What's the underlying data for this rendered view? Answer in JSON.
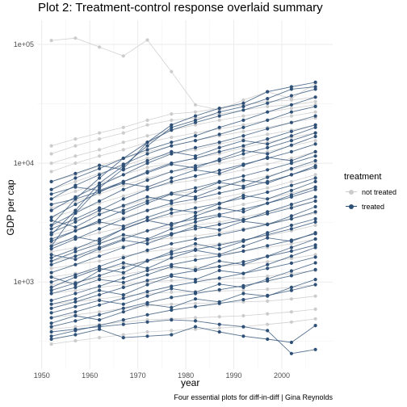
{
  "chart_data": {
    "type": "line",
    "title": "Plot 2: Treatment-control response overlaid summary",
    "xlabel": "year",
    "ylabel": "GDP per cap",
    "caption": "Four essential plots for diff-in-diff | Gina Reynolds",
    "x_ticks": [
      1950,
      1960,
      1970,
      1980,
      1990,
      2000
    ],
    "y_ticks": [
      {
        "value": 1000,
        "label": "1e+03"
      },
      {
        "value": 10000,
        "label": "1e+04"
      },
      {
        "value": 100000,
        "label": "1e+05"
      }
    ],
    "xlim": [
      1949.2,
      2010.6
    ],
    "ylim": [
      185,
      160000
    ],
    "log_y": true,
    "grid": true,
    "years": [
      1952,
      1957,
      1962,
      1967,
      1972,
      1977,
      1982,
      1987,
      1992,
      1997,
      2002,
      2007
    ],
    "legend": {
      "title": "treatment",
      "position": "right",
      "entries": [
        {
          "label": "not treated",
          "color": "#cccccc"
        },
        {
          "label": "treated",
          "color": "#2e5077"
        }
      ]
    },
    "series": [
      {
        "group": "not treated",
        "values": [
          108000,
          113000,
          95000,
          80000,
          109000,
          59000,
          31000,
          28000,
          34000,
          40000,
          35000,
          47000
        ]
      },
      {
        "group": "not treated",
        "values": [
          14000,
          16000,
          18000,
          20000,
          23000,
          26000,
          27000,
          29000,
          31000,
          33000,
          34000,
          36000
        ]
      },
      {
        "group": "not treated",
        "values": [
          12000,
          14000,
          16000,
          18000,
          21000,
          23000,
          24000,
          26000,
          28000,
          30000,
          31000,
          33000
        ]
      },
      {
        "group": "not treated",
        "values": [
          10000,
          11500,
          13000,
          15000,
          17000,
          19000,
          21000,
          23000,
          25000,
          27000,
          29000,
          31000
        ]
      },
      {
        "group": "not treated",
        "values": [
          8500,
          10000,
          11500,
          13000,
          15000,
          16500,
          18000,
          19500,
          21000,
          23000,
          25000,
          27000
        ]
      },
      {
        "group": "not treated",
        "values": [
          7000,
          8000,
          9500,
          11000,
          12500,
          14000,
          15500,
          17000,
          18500,
          20000,
          22000,
          24000
        ]
      },
      {
        "group": "not treated",
        "values": [
          6000,
          7000,
          8200,
          9500,
          11000,
          12000,
          13000,
          14500,
          16000,
          17500,
          19000,
          21000
        ]
      },
      {
        "group": "not treated",
        "values": [
          5000,
          5800,
          6800,
          8000,
          9200,
          10000,
          11000,
          12000,
          13500,
          15000,
          16500,
          18000
        ]
      },
      {
        "group": "not treated",
        "values": [
          4200,
          4800,
          5500,
          6500,
          7500,
          8500,
          9000,
          10000,
          11000,
          12500,
          14000,
          15500
        ]
      },
      {
        "group": "not treated",
        "values": [
          3500,
          4000,
          4600,
          5300,
          6100,
          6800,
          7200,
          8000,
          8800,
          9800,
          11000,
          12500
        ]
      },
      {
        "group": "not treated",
        "values": [
          3000,
          3300,
          3800,
          4300,
          5000,
          5500,
          5800,
          6300,
          7000,
          7800,
          8800,
          10000
        ]
      },
      {
        "group": "not treated",
        "values": [
          2500,
          2800,
          3100,
          3500,
          4000,
          4400,
          4700,
          5100,
          5600,
          6200,
          7000,
          8000
        ]
      },
      {
        "group": "not treated",
        "values": [
          2100,
          2300,
          2600,
          2900,
          3300,
          3600,
          3800,
          4100,
          4500,
          5000,
          5600,
          6300
        ]
      },
      {
        "group": "not treated",
        "values": [
          1800,
          1950,
          2150,
          2400,
          2700,
          2900,
          3000,
          3200,
          3500,
          3900,
          4300,
          4800
        ]
      },
      {
        "group": "not treated",
        "values": [
          1500,
          1650,
          1800,
          2000,
          2200,
          2350,
          2450,
          2600,
          2800,
          3100,
          3400,
          3800
        ]
      },
      {
        "group": "not treated",
        "values": [
          1300,
          1400,
          1500,
          1650,
          1800,
          1900,
          2000,
          2100,
          2250,
          2450,
          2700,
          3000
        ]
      },
      {
        "group": "not treated",
        "values": [
          1100,
          1180,
          1270,
          1380,
          1500,
          1580,
          1650,
          1720,
          1820,
          1950,
          2100,
          2300
        ]
      },
      {
        "group": "not treated",
        "values": [
          950,
          1000,
          1080,
          1160,
          1250,
          1300,
          1330,
          1350,
          1400,
          1480,
          1580,
          1700
        ]
      },
      {
        "group": "not treated",
        "values": [
          800,
          850,
          900,
          950,
          1000,
          1030,
          1050,
          1060,
          1080,
          1120,
          1180,
          1250
        ]
      },
      {
        "group": "not treated",
        "values": [
          650,
          680,
          720,
          760,
          800,
          820,
          830,
          840,
          850,
          870,
          900,
          950
        ]
      },
      {
        "group": "not treated",
        "values": [
          500,
          530,
          560,
          600,
          630,
          650,
          660,
          670,
          680,
          690,
          720,
          760
        ]
      },
      {
        "group": "not treated",
        "values": [
          400,
          420,
          440,
          460,
          480,
          490,
          500,
          510,
          520,
          540,
          560,
          590
        ]
      },
      {
        "group": "not treated",
        "values": [
          300,
          320,
          340,
          360,
          380,
          390,
          400,
          410,
          420,
          440,
          460,
          490
        ]
      },
      {
        "group": "treated",
        "values": [
          2000,
          3800,
          6200,
          9000,
          15000,
          21000,
          25000,
          29000,
          32000,
          40000,
          44000,
          48000
        ]
      },
      {
        "group": "treated",
        "values": [
          2500,
          4000,
          6800,
          9500,
          14000,
          20000,
          23000,
          27000,
          30000,
          35000,
          42000,
          44000
        ]
      },
      {
        "group": "treated",
        "values": [
          3000,
          5000,
          7500,
          11000,
          15000,
          19000,
          22000,
          25000,
          28000,
          32000,
          37000,
          42000
        ]
      },
      {
        "group": "treated",
        "values": [
          6000,
          7500,
          9000,
          11000,
          13000,
          15000,
          17000,
          20000,
          23000,
          27000,
          31000,
          36000
        ]
      },
      {
        "group": "treated",
        "values": [
          5000,
          6500,
          8000,
          9800,
          12000,
          14000,
          15500,
          17500,
          20000,
          23000,
          27000,
          30000
        ]
      },
      {
        "group": "treated",
        "values": [
          4000,
          5200,
          6500,
          8000,
          10000,
          12000,
          13500,
          15000,
          17000,
          19500,
          22000,
          25000
        ]
      },
      {
        "group": "treated",
        "values": [
          3500,
          4500,
          5700,
          7000,
          8500,
          10000,
          11000,
          12500,
          14000,
          16000,
          18500,
          21000
        ]
      },
      {
        "group": "treated",
        "values": [
          3000,
          3800,
          4800,
          6000,
          7200,
          8500,
          9500,
          10500,
          12000,
          13500,
          15500,
          18000
        ]
      },
      {
        "group": "treated",
        "values": [
          2600,
          3200,
          4000,
          5000,
          6000,
          7000,
          7800,
          8700,
          9800,
          11000,
          12500,
          14500
        ]
      },
      {
        "group": "treated",
        "values": [
          2200,
          2700,
          3300,
          4000,
          4800,
          5600,
          6200,
          7000,
          7800,
          8800,
          10000,
          11500
        ]
      },
      {
        "group": "treated",
        "values": [
          1900,
          2300,
          2800,
          3400,
          4000,
          4600,
          5000,
          5600,
          6200,
          7000,
          8000,
          9200
        ]
      },
      {
        "group": "treated",
        "values": [
          1600,
          1900,
          2300,
          2800,
          3300,
          3800,
          4200,
          4600,
          5100,
          5700,
          6500,
          7500
        ]
      },
      {
        "group": "treated",
        "values": [
          1400,
          1650,
          1950,
          2300,
          2700,
          3100,
          3400,
          3700,
          4100,
          4600,
          5200,
          6000
        ]
      },
      {
        "group": "treated",
        "values": [
          1200,
          1400,
          1650,
          1950,
          2250,
          2550,
          2800,
          3050,
          3350,
          3750,
          4200,
          4800
        ]
      },
      {
        "group": "treated",
        "values": [
          1000,
          1150,
          1350,
          1600,
          1850,
          2100,
          2300,
          2500,
          2750,
          3050,
          3400,
          3900
        ]
      },
      {
        "group": "treated",
        "values": [
          850,
          980,
          1130,
          1320,
          1520,
          1720,
          1880,
          2050,
          2250,
          2500,
          2800,
          3200
        ]
      },
      {
        "group": "treated",
        "values": [
          700,
          800,
          920,
          1080,
          1250,
          1400,
          1530,
          1660,
          1820,
          2020,
          2250,
          2550
        ]
      },
      {
        "group": "treated",
        "values": [
          600,
          680,
          780,
          900,
          1030,
          1150,
          1250,
          1350,
          1480,
          1640,
          1820,
          2050
        ]
      },
      {
        "group": "treated",
        "values": [
          500,
          560,
          640,
          730,
          830,
          920,
          1000,
          1080,
          1180,
          1300,
          1440,
          1620
        ]
      },
      {
        "group": "treated",
        "values": [
          420,
          470,
          530,
          600,
          670,
          740,
          800,
          860,
          930,
          1020,
          1130,
          1270
        ]
      },
      {
        "group": "treated",
        "values": [
          350,
          390,
          430,
          480,
          530,
          580,
          620,
          660,
          710,
          770,
          850,
          950
        ]
      },
      {
        "group": "treated",
        "values": [
          330,
          360,
          400,
          340,
          350,
          360,
          420,
          380,
          350,
          330,
          310,
          430
        ]
      },
      {
        "group": "treated",
        "values": [
          380,
          400,
          420,
          440,
          460,
          480,
          470,
          440,
          420,
          390,
          250,
          270
        ]
      },
      {
        "group": "treated",
        "values": [
          900,
          1100,
          1300,
          1200,
          1500,
          1800,
          2100,
          1900,
          2200,
          2600,
          3000,
          3400
        ]
      },
      {
        "group": "treated",
        "values": [
          1500,
          1800,
          2100,
          2500,
          2300,
          2800,
          3200,
          3600,
          3300,
          3900,
          4500,
          5200
        ]
      },
      {
        "group": "treated",
        "values": [
          2800,
          3400,
          4200,
          3800,
          4600,
          5500,
          5200,
          6200,
          7200,
          6800,
          8000,
          9500
        ]
      },
      {
        "group": "treated",
        "values": [
          4500,
          5000,
          5800,
          6800,
          6300,
          7500,
          8800,
          8200,
          9600,
          11200,
          10500,
          12500
        ]
      },
      {
        "group": "treated",
        "values": [
          7000,
          8200,
          9600,
          8800,
          10500,
          12500,
          11500,
          13500,
          15500,
          14500,
          17000,
          20000
        ]
      },
      {
        "group": "treated",
        "values": [
          650,
          720,
          850,
          780,
          950,
          1120,
          1050,
          1250,
          1180,
          1400,
          1650,
          1950
        ]
      },
      {
        "group": "treated",
        "values": [
          1100,
          950,
          1250,
          1450,
          1300,
          1600,
          1850,
          1700,
          2000,
          2350,
          2200,
          2600
        ]
      },
      {
        "group": "treated",
        "values": [
          2000,
          2400,
          2200,
          2800,
          3300,
          3000,
          3600,
          4200,
          3900,
          4600,
          5400,
          6300
        ]
      },
      {
        "group": "treated",
        "values": [
          3300,
          2900,
          3700,
          4400,
          5200,
          4800,
          5800,
          6900,
          6400,
          7600,
          9000,
          10500
        ]
      },
      {
        "group": "treated",
        "values": [
          5500,
          6300,
          5900,
          7000,
          8300,
          9800,
          9100,
          10800,
          12800,
          12000,
          14200,
          16800
        ]
      },
      {
        "group": "treated",
        "values": [
          450,
          520,
          480,
          560,
          650,
          610,
          720,
          680,
          800,
          760,
          900,
          1050
        ]
      },
      {
        "group": "treated",
        "values": [
          550,
          620,
          700,
          650,
          760,
          880,
          820,
          960,
          900,
          1060,
          1240,
          1450
        ]
      },
      {
        "group": "treated",
        "values": [
          1700,
          1550,
          1900,
          2250,
          2100,
          2500,
          2950,
          2750,
          3250,
          3050,
          3600,
          4300
        ]
      },
      {
        "group": "treated",
        "values": [
          800,
          900,
          1050,
          990,
          1150,
          1350,
          1270,
          1500,
          1400,
          1650,
          1950,
          2300
        ]
      },
      {
        "group": "treated",
        "values": [
          2300,
          2700,
          3200,
          2950,
          3500,
          4100,
          3850,
          4550,
          5350,
          5000,
          5900,
          7000
        ]
      }
    ]
  }
}
